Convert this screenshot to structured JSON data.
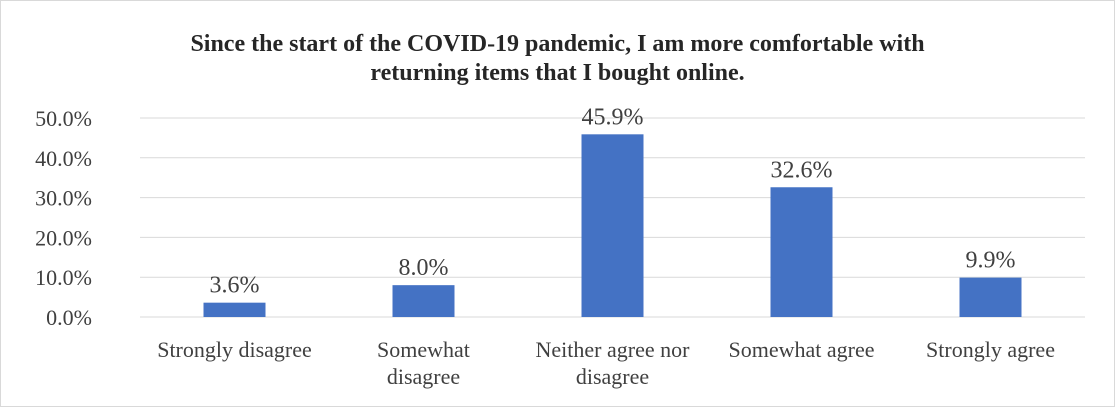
{
  "chart_data": {
    "type": "bar",
    "title_lines": [
      "Since the start of the COVID-19 pandemic, I am more comfortable with",
      "returning items that I bought online."
    ],
    "categories": [
      [
        "Strongly disagree"
      ],
      [
        "Somewhat",
        "disagree"
      ],
      [
        "Neither agree nor",
        "disagree"
      ],
      [
        "Somewhat agree"
      ],
      [
        "Strongly agree"
      ]
    ],
    "values": [
      3.6,
      8.0,
      45.9,
      32.6,
      9.9
    ],
    "data_labels": [
      "3.6%",
      "8.0%",
      "45.9%",
      "32.6%",
      "9.9%"
    ],
    "y_ticks": [
      0,
      10,
      20,
      30,
      40,
      50
    ],
    "y_tick_labels": [
      "0.0%",
      "10.0%",
      "20.0%",
      "30.0%",
      "40.0%",
      "50.0%"
    ],
    "ylim": [
      0,
      50
    ],
    "grid": true,
    "legend": "none",
    "bar_color": "#4472C4",
    "gridline_color": "#d9d9d9"
  }
}
